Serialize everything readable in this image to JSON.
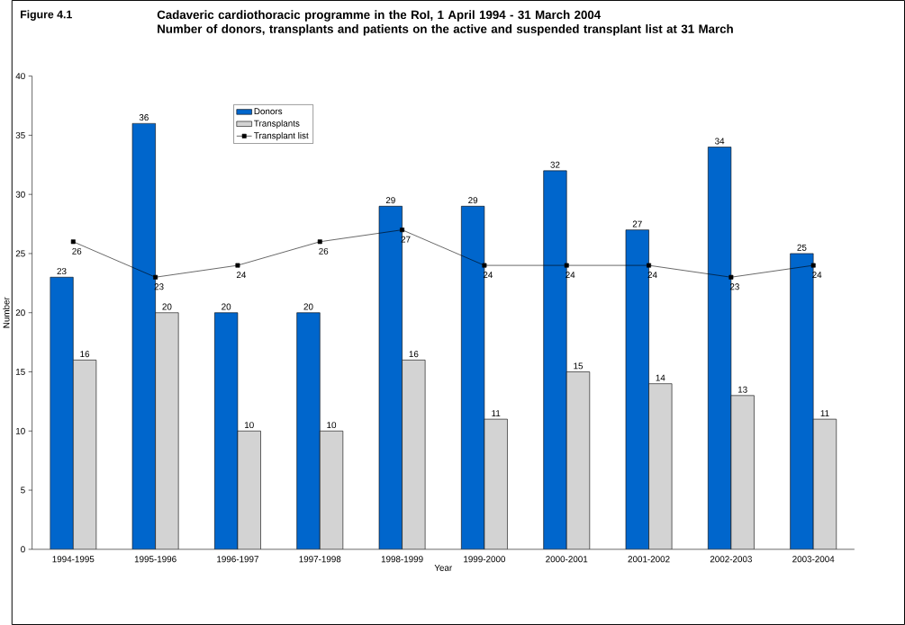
{
  "chart_data": {
    "type": "bar",
    "title": "Cadaveric cardiothoracic programme in the RoI, 1 April 1994 - 31 March 2004",
    "subtitle": "Number of donors, transplants and patients on the active and suspended transplant list at 31 March",
    "annotations": [
      "Figure 4.1"
    ],
    "xlabel": "Year",
    "ylabel": "Number",
    "categories": [
      "1994-1995",
      "1995-1996",
      "1996-1997",
      "1997-1998",
      "1998-1999",
      "1999-2000",
      "2000-2001",
      "2001-2002",
      "2002-2003",
      "2003-2004"
    ],
    "series": [
      {
        "name": "Donors",
        "color": "#0066cc",
        "values": [
          23,
          36,
          20,
          20,
          29,
          29,
          32,
          27,
          34,
          25
        ]
      },
      {
        "name": "Transplants",
        "color": "#d3d3d3",
        "values": [
          16,
          20,
          10,
          10,
          16,
          11,
          15,
          14,
          13,
          11
        ]
      },
      {
        "name": "Transplant list",
        "type": "line",
        "color": "#000000",
        "marker": "square",
        "values": [
          26,
          23,
          24,
          26,
          27,
          24,
          24,
          24,
          23,
          24
        ]
      }
    ],
    "ylim": [
      0,
      40
    ],
    "yticks": [
      0,
      5,
      10,
      15,
      20,
      25,
      30,
      35,
      40
    ],
    "data_labels": true,
    "legend": "top left",
    "grid": false
  }
}
